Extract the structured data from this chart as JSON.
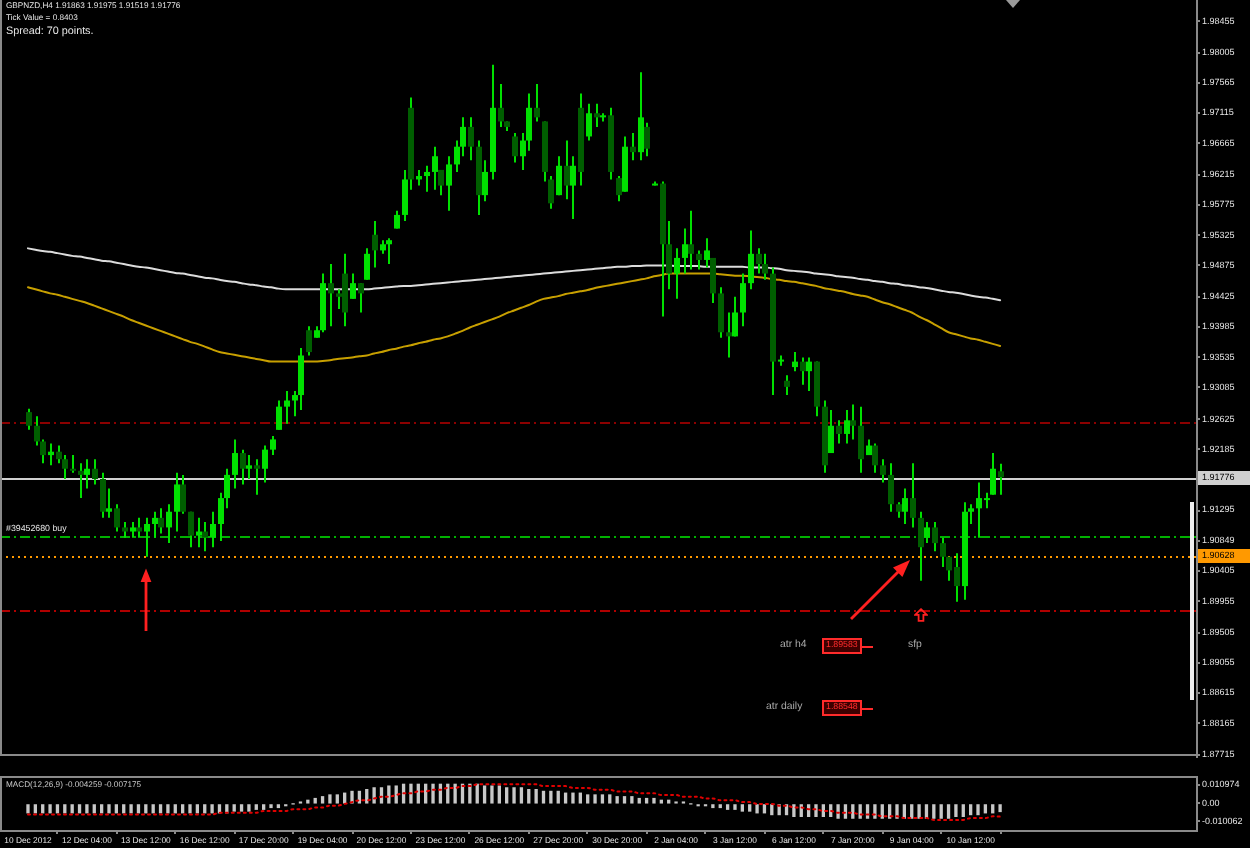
{
  "chart_data": [
    {
      "type": "candlestick",
      "title": "GBPNZD,H4 1.91863 1.91975 1.91519 1.91776",
      "annotations": [
        "Tick Value = 0.8403",
        "Spread: 70 points.",
        "atr h4",
        "1.89583",
        "atr daily",
        "1.88548",
        "sfp"
      ],
      "categories": [
        null,
        null,
        null,
        null,
        null,
        null,
        null,
        null,
        null,
        null,
        null,
        null,
        null,
        null,
        null,
        null,
        null,
        null,
        null,
        null,
        null,
        null,
        null,
        null,
        null,
        null,
        null,
        null,
        null,
        null,
        null,
        null,
        null,
        null,
        null,
        null,
        null,
        null,
        null,
        null,
        null,
        null,
        null,
        null,
        null,
        null,
        null,
        null,
        null,
        null,
        null,
        null,
        null,
        null,
        null,
        null,
        null,
        null,
        null,
        null,
        null,
        null,
        null,
        null,
        null,
        null,
        null,
        null,
        null,
        null,
        null,
        null,
        null,
        null,
        null,
        null,
        null,
        null,
        null,
        null,
        null,
        null,
        null,
        null,
        null,
        null,
        null,
        null,
        null,
        null,
        null,
        null,
        null,
        null,
        null,
        null,
        null,
        null,
        null,
        null,
        null,
        null,
        null,
        null,
        null,
        null,
        null,
        null,
        null,
        null,
        null,
        null,
        null,
        null,
        null,
        null,
        null,
        null,
        null,
        null,
        null,
        null,
        null,
        null,
        null,
        null,
        null,
        null,
        null,
        null,
        null,
        null,
        null
      ],
      "color": "#00e000",
      "colors": [
        "#005e00",
        "#005e00",
        "#005e00",
        "#00e000",
        "#005e00",
        "#005e00",
        "#005e00",
        "#005e00",
        "#00e000",
        "#005e00",
        "#005e00",
        "#00e000",
        "#005e00",
        "#005e00",
        "#00e000",
        "#005e00",
        "#00e000",
        "#00e000",
        "#005e00",
        "#00e000",
        "#00e000",
        "#005e00",
        "#005e00",
        "#00e000",
        "#005e00",
        "#00e000",
        "#00e000",
        "#00e000",
        "#00e000",
        "#005e00",
        "#00e000",
        "#005e00",
        "#00e000",
        "#00e000",
        "#00e000",
        "#00e000",
        "#00e000",
        "#00e000",
        "#005e00",
        "#00e000",
        "#00e000",
        "#005e00",
        "#005e00",
        "#005e00",
        "#00e000",
        "#005e00",
        "#00e000",
        "#005e00",
        "#00e000",
        "#00e000",
        "#00e000",
        "#00e000",
        "#005e00",
        "#00e000",
        "#00e000",
        "#00e000",
        "#005e00",
        "#00e000",
        "#00e000",
        "#00e000",
        "#005e00",
        "#005e00",
        "#00e000",
        "#00e000",
        "#005e00",
        "#005e00",
        "#005e00",
        "#00e000",
        "#00e000",
        "#005e00",
        "#005e00",
        "#005e00",
        "#00e000",
        "#005e00",
        "#00e000",
        "#005e00",
        "#00e000",
        "#005e00",
        "#00e000",
        "#005e00",
        "#005e00",
        "#00e000",
        "#005e00",
        "#00e000",
        "#005e00",
        "#00e000",
        "#005e00",
        "#005e00",
        "#00e000",
        "#00e000",
        "#005e00",
        "#005e00",
        "#00e000",
        "#005e00",
        "#005e00",
        "#005e00",
        "#00e000",
        "#00e000",
        "#00e000",
        "#005e00",
        "#005e00",
        "#005e00",
        "#00e000",
        "#005e00",
        "#00e000",
        "#005e00",
        "#00e000",
        "#005e00",
        "#005e00",
        "#00e000",
        "#005e00",
        "#00e000",
        "#005e00",
        "#005e00",
        "#00e000",
        "#005e00",
        "#005e00",
        "#005e00",
        "#005e00",
        "#00e000",
        "#005e00",
        "#005e00",
        "#00e000",
        "#005e00",
        "#005e00",
        "#005e00",
        "#005e00",
        "#00e000",
        "#00e000",
        "#00e000",
        "#00e000",
        "#00e000",
        "#005e00"
      ],
      "ohlc": [
        [
          1.9273,
          1.9278,
          1.9247,
          1.9253
        ],
        [
          1.9253,
          1.9267,
          1.9224,
          1.923
        ],
        [
          1.923,
          1.9233,
          1.9198,
          1.921
        ],
        [
          1.921,
          1.9227,
          1.9195,
          1.9215
        ],
        [
          1.9215,
          1.9224,
          1.9198,
          1.9204
        ],
        [
          1.9204,
          1.921,
          1.9175,
          1.919
        ],
        [
          1.919,
          1.921,
          1.9184,
          1.9187
        ],
        [
          1.9187,
          1.9198,
          1.9147,
          1.9181
        ],
        [
          1.9181,
          1.9204,
          1.9161,
          1.919
        ],
        [
          1.919,
          1.9204,
          1.9167,
          1.9175
        ],
        [
          1.9175,
          1.9184,
          1.9118,
          1.9127
        ],
        [
          1.9127,
          1.9161,
          1.9118,
          1.9132
        ],
        [
          1.9132,
          1.9138,
          1.9098,
          1.9104
        ],
        [
          1.9104,
          1.9112,
          1.9089,
          1.9098
        ],
        [
          1.9098,
          1.9112,
          1.9089,
          1.9104
        ],
        [
          1.9104,
          1.9118,
          1.9089,
          1.9098
        ],
        [
          1.9098,
          1.9118,
          1.9061,
          1.9109
        ],
        [
          1.9109,
          1.9127,
          1.9089,
          1.9118
        ],
        [
          1.9118,
          1.9132,
          1.9095,
          1.9104
        ],
        [
          1.9104,
          1.9138,
          1.9081,
          1.9127
        ],
        [
          1.9127,
          1.9184,
          1.9098,
          1.9167
        ],
        [
          1.9167,
          1.9181,
          1.9124,
          1.9127
        ],
        [
          1.9127,
          1.9127,
          1.9075,
          1.9092
        ],
        [
          1.9092,
          1.9118,
          1.9075,
          1.9098
        ],
        [
          1.9098,
          1.9112,
          1.9069,
          1.9089
        ],
        [
          1.9089,
          1.9127,
          1.9075,
          1.9109
        ],
        [
          1.9109,
          1.9155,
          1.9084,
          1.9147
        ],
        [
          1.9147,
          1.919,
          1.9132,
          1.9181
        ],
        [
          1.9181,
          1.9233,
          1.9161,
          1.9213
        ],
        [
          1.9213,
          1.9218,
          1.9167,
          1.919
        ],
        [
          1.919,
          1.921,
          1.9175,
          1.9195
        ],
        [
          1.9195,
          1.9204,
          1.9152,
          1.919
        ],
        [
          1.919,
          1.9224,
          1.917,
          1.9218
        ],
        [
          1.9218,
          1.9238,
          1.921,
          1.9233
        ],
        [
          1.9247,
          1.929,
          1.9247,
          1.9281
        ],
        [
          1.9281,
          1.9304,
          1.9256,
          1.929
        ],
        [
          1.929,
          1.9304,
          1.9267,
          1.9298
        ],
        [
          1.9298,
          1.9367,
          1.9276,
          1.9356
        ],
        [
          1.9393,
          1.9399,
          1.9356,
          1.9361
        ],
        [
          1.9382,
          1.9399,
          1.9382,
          1.9393
        ],
        [
          1.9393,
          1.9476,
          1.939,
          1.9462
        ],
        [
          1.9462,
          1.949,
          1.9399,
          1.9447
        ],
        [
          1.9447,
          1.9453,
          1.9424,
          1.9442
        ],
        [
          1.9476,
          1.9505,
          1.9399,
          1.9419
        ],
        [
          1.9439,
          1.9476,
          1.9439,
          1.9462
        ],
        [
          1.9462,
          1.9462,
          1.9419,
          1.9447
        ],
        [
          1.9467,
          1.9513,
          1.9467,
          1.9505
        ],
        [
          1.9533,
          1.9553,
          1.9485,
          1.951
        ],
        [
          1.951,
          1.9525,
          1.9505,
          1.9519
        ],
        [
          1.9519,
          1.9528,
          1.949,
          1.9525
        ],
        [
          1.9542,
          1.9568,
          1.9542,
          1.9562
        ],
        [
          1.9562,
          1.9628,
          1.9553,
          1.9614
        ],
        [
          1.9719,
          1.9734,
          1.9599,
          1.9614
        ],
        [
          1.9614,
          1.9628,
          1.9605,
          1.9619
        ],
        [
          1.9619,
          1.9634,
          1.9596,
          1.9625
        ],
        [
          1.9625,
          1.9662,
          1.9599,
          1.9648
        ],
        [
          1.9628,
          1.9628,
          1.9591,
          1.9605
        ],
        [
          1.9605,
          1.9648,
          1.9568,
          1.9636
        ],
        [
          1.9636,
          1.9671,
          1.9625,
          1.9662
        ],
        [
          1.9662,
          1.9705,
          1.9648,
          1.9691
        ],
        [
          1.9691,
          1.9705,
          1.9642,
          1.9662
        ],
        [
          1.9662,
          1.9671,
          1.9562,
          1.9591
        ],
        [
          1.9591,
          1.9642,
          1.9582,
          1.9625
        ],
        [
          1.9625,
          1.9782,
          1.9614,
          1.9719
        ],
        [
          1.9719,
          1.9754,
          1.9691,
          1.9699
        ],
        [
          1.9699,
          1.9699,
          1.9685,
          1.9691
        ],
        [
          1.9677,
          1.9682,
          1.9639,
          1.9648
        ],
        [
          1.9648,
          1.9682,
          1.9628,
          1.9671
        ],
        [
          1.9671,
          1.974,
          1.9656,
          1.9719
        ],
        [
          1.9719,
          1.9754,
          1.9699,
          1.9705
        ],
        [
          1.9699,
          1.9699,
          1.9611,
          1.9625
        ],
        [
          1.9614,
          1.9619,
          1.9571,
          1.9579
        ],
        [
          1.9591,
          1.9648,
          1.9591,
          1.9634
        ],
        [
          1.9634,
          1.9671,
          1.9585,
          1.9605
        ],
        [
          1.9605,
          1.9648,
          1.9556,
          1.9634
        ],
        [
          1.9719,
          1.974,
          1.9605,
          1.9625
        ],
        [
          1.9677,
          1.9725,
          1.9671,
          1.9711
        ],
        [
          1.9711,
          1.9725,
          1.9691,
          1.9705
        ],
        [
          1.9705,
          1.9711,
          1.9699,
          1.9708
        ],
        [
          1.9708,
          1.9719,
          1.9614,
          1.9625
        ],
        [
          1.9616,
          1.9619,
          1.9582,
          1.9591
        ],
        [
          1.9596,
          1.9677,
          1.9596,
          1.9662
        ],
        [
          1.9662,
          1.9682,
          1.9642,
          1.9654
        ],
        [
          1.9654,
          1.9771,
          1.9642,
          1.9705
        ],
        [
          1.9691,
          1.9697,
          1.9648,
          1.9659
        ],
        [
          1.9608,
          1.9611,
          1.9605,
          1.9608
        ],
        [
          1.9608,
          1.9611,
          1.9413,
          1.9519
        ],
        [
          1.9519,
          1.9553,
          1.9453,
          1.9476
        ],
        [
          1.9476,
          1.9513,
          1.9439,
          1.9499
        ],
        [
          1.9499,
          1.9542,
          1.9476,
          1.9519
        ],
        [
          1.9519,
          1.9568,
          1.9482,
          1.9505
        ],
        [
          1.9505,
          1.951,
          1.9482,
          1.9496
        ],
        [
          1.9496,
          1.9528,
          1.9485,
          1.951
        ],
        [
          1.9499,
          1.9499,
          1.9433,
          1.9447
        ],
        [
          1.9447,
          1.9456,
          1.9382,
          1.939
        ],
        [
          1.939,
          1.9419,
          1.9353,
          1.9384
        ],
        [
          1.9384,
          1.9442,
          1.9384,
          1.9419
        ],
        [
          1.9419,
          1.9476,
          1.9399,
          1.9462
        ],
        [
          1.9462,
          1.9539,
          1.9453,
          1.9505
        ],
        [
          1.9505,
          1.9513,
          1.9476,
          1.949
        ],
        [
          1.949,
          1.9505,
          1.9467,
          1.9476
        ],
        [
          1.9476,
          1.9485,
          1.9298,
          1.9347
        ],
        [
          1.9347,
          1.9356,
          1.9341,
          1.935
        ],
        [
          1.9319,
          1.9327,
          1.9298,
          1.931
        ],
        [
          1.9339,
          1.9361,
          1.9333,
          1.9347
        ],
        [
          1.9347,
          1.9353,
          1.9313,
          1.9333
        ],
        [
          1.9333,
          1.9353,
          1.9304,
          1.9347
        ],
        [
          1.9347,
          1.9347,
          1.9267,
          1.9281
        ],
        [
          1.9281,
          1.929,
          1.9184,
          1.9195
        ],
        [
          1.9213,
          1.9276,
          1.9213,
          1.9253
        ],
        [
          1.9253,
          1.9261,
          1.9227,
          1.9241
        ],
        [
          1.9241,
          1.9276,
          1.9227,
          1.9261
        ],
        [
          1.9261,
          1.9284,
          1.9233,
          1.9253
        ],
        [
          1.9253,
          1.9281,
          1.9184,
          1.9204
        ],
        [
          1.921,
          1.9233,
          1.921,
          1.9224
        ],
        [
          1.9224,
          1.9227,
          1.9184,
          1.9195
        ],
        [
          1.9195,
          1.9204,
          1.917,
          1.9181
        ],
        [
          1.9181,
          1.9198,
          1.9127,
          1.9138
        ],
        [
          1.9138,
          1.9141,
          1.9118,
          1.9127
        ],
        [
          1.9127,
          1.9161,
          1.9109,
          1.9147
        ],
        [
          1.9147,
          1.9198,
          1.9104,
          1.9118
        ],
        [
          1.9118,
          1.9127,
          1.9026,
          1.9075
        ],
        [
          1.9089,
          1.9112,
          1.9081,
          1.9104
        ],
        [
          1.9104,
          1.9112,
          1.9069,
          1.9081
        ],
        [
          1.9081,
          1.9089,
          1.9046,
          1.9061
        ],
        [
          1.9061,
          1.9061,
          1.9026,
          1.9041
        ],
        [
          1.9046,
          1.9066,
          1.8995,
          1.9018
        ],
        [
          1.9018,
          1.9141,
          1.8998,
          1.9127
        ],
        [
          1.9127,
          1.9138,
          1.9109,
          1.9132
        ],
        [
          1.9132,
          1.917,
          1.9089,
          1.9147
        ],
        [
          1.9147,
          1.9155,
          1.9132,
          1.9147
        ],
        [
          1.9152,
          1.9213,
          1.9152,
          1.919
        ],
        [
          1.91863,
          1.91975,
          1.91519,
          1.91776
        ]
      ],
      "series": [
        {
          "type": "line",
          "color": "#dcdcdc",
          "values": [
            1.9513,
            1.9511,
            1.9509,
            1.9508,
            1.9506,
            1.9504,
            1.9502,
            1.9501,
            1.9499,
            1.9497,
            1.9495,
            1.9494,
            1.9492,
            1.949,
            1.9488,
            1.9486,
            1.9485,
            1.9483,
            1.9481,
            1.9479,
            1.9477,
            1.9476,
            1.9474,
            1.9472,
            1.947,
            1.9469,
            1.9467,
            1.9465,
            1.9464,
            1.9462,
            1.946,
            1.9459,
            1.9457,
            1.9456,
            1.9454,
            1.9453,
            1.9453,
            1.9453,
            1.9453,
            1.9453,
            1.9453,
            1.9453,
            1.9453,
            1.9453,
            1.9453,
            1.9453,
            1.9453,
            1.9454,
            1.9455,
            1.9456,
            1.9457,
            1.9458,
            1.9458,
            1.9459,
            1.946,
            1.9461,
            1.9462,
            1.9463,
            1.9464,
            1.9465,
            1.9466,
            1.9467,
            1.9468,
            1.9469,
            1.947,
            1.9471,
            1.9472,
            1.9473,
            1.9474,
            1.9475,
            1.9476,
            1.9477,
            1.9478,
            1.9479,
            1.948,
            1.9481,
            1.9482,
            1.9483,
            1.9484,
            1.9485,
            1.9486,
            1.9486,
            1.9487,
            1.9487,
            1.9488,
            1.9488,
            1.9488,
            1.9488,
            1.9487,
            1.9487,
            1.9487,
            1.9487,
            1.9486,
            1.9486,
            1.9486,
            1.9486,
            1.9486,
            1.9486,
            1.9485,
            1.9485,
            1.9485,
            1.9484,
            1.9483,
            1.9481,
            1.948,
            1.9479,
            1.9478,
            1.9476,
            1.9475,
            1.9474,
            1.9472,
            1.9471,
            1.947,
            1.9468,
            1.9467,
            1.9465,
            1.9464,
            1.9462,
            1.9461,
            1.9459,
            1.9458,
            1.9456,
            1.9455,
            1.9453,
            1.9451,
            1.9449,
            1.9448,
            1.9446,
            1.9444,
            1.9442,
            1.9441,
            1.9439,
            1.9437
          ]
        },
        {
          "type": "line",
          "color": "#c8a000",
          "values": [
            1.9456,
            1.9453,
            1.945,
            1.9447,
            1.9445,
            1.9442,
            1.9439,
            1.9436,
            1.9433,
            1.9429,
            1.9425,
            1.9421,
            1.9417,
            1.9413,
            1.9408,
            1.9404,
            1.94,
            1.9396,
            1.9392,
            1.9388,
            1.9384,
            1.938,
            1.9376,
            1.9373,
            1.9369,
            1.9365,
            1.9361,
            1.9359,
            1.9357,
            1.9355,
            1.9353,
            1.9351,
            1.9349,
            1.9347,
            1.9347,
            1.9347,
            1.9347,
            1.9347,
            1.9347,
            1.9347,
            1.9348,
            1.9349,
            1.9351,
            1.9352,
            1.9353,
            1.9355,
            1.9356,
            1.9359,
            1.9361,
            1.9364,
            1.9366,
            1.9369,
            1.9371,
            1.9374,
            1.9376,
            1.9379,
            1.9381,
            1.9384,
            1.9388,
            1.9392,
            1.9397,
            1.9401,
            1.9405,
            1.9409,
            1.9413,
            1.9418,
            1.9422,
            1.9426,
            1.943,
            1.9435,
            1.9439,
            1.9441,
            1.9443,
            1.9446,
            1.9448,
            1.945,
            1.9452,
            1.9455,
            1.9457,
            1.9459,
            1.9461,
            1.9463,
            1.9465,
            1.9467,
            1.9469,
            1.9472,
            1.9474,
            1.9476,
            1.9476,
            1.9476,
            1.9476,
            1.9476,
            1.9476,
            1.9476,
            1.9475,
            1.9474,
            1.9473,
            1.9473,
            1.9472,
            1.9471,
            1.947,
            1.9468,
            1.9467,
            1.9465,
            1.9464,
            1.9462,
            1.946,
            1.9458,
            1.9455,
            1.9453,
            1.9451,
            1.9449,
            1.9446,
            1.9444,
            1.9442,
            1.9438,
            1.9434,
            1.9431,
            1.9427,
            1.9423,
            1.9419,
            1.9413,
            1.9408,
            1.9402,
            1.9396,
            1.939,
            1.9387,
            1.9384,
            1.9381,
            1.9379,
            1.9376,
            1.9373,
            1.937
          ]
        }
      ],
      "marker": "none",
      "ylim": [
        1.8769,
        1.9877
      ],
      "yticks": [
        1.98455,
        1.98005,
        1.97565,
        1.97115,
        1.96665,
        1.96215,
        1.95775,
        1.95325,
        1.94875,
        1.94425,
        1.93985,
        1.93535,
        1.93085,
        1.92625,
        1.92185,
        1.91295,
        1.90849,
        1.90405,
        1.89955,
        1.89505,
        1.89055,
        1.88615,
        1.88165,
        1.87715
      ],
      "tick_labels": "y",
      "ref_lines": [
        {
          "axis": "y",
          "value": 1.92584,
          "color": "#8b0000",
          "line_style": "dashed"
        },
        {
          "axis": "y",
          "value": 1.91776,
          "label": "1.91776",
          "color": "#d0d0d0",
          "line_style": "solid"
        },
        {
          "axis": "y",
          "value": 1.90923,
          "label": "#39452680 buy",
          "color": "#00b000",
          "line_style": "dashed"
        },
        {
          "axis": "y",
          "value": 1.90628,
          "label": "1.90628",
          "color": "#ff9900",
          "line_style": "dotted"
        },
        {
          "axis": "y",
          "value": 1.8983,
          "color": "#b00000",
          "line_style": "dashed"
        }
      ],
      "grid": false,
      "legend": false
    },
    {
      "type": "bar",
      "title": "MACD(12,26,9) -0.004259 -0.007175",
      "categories": [
        "10 Dec 2012",
        null,
        null,
        null,
        null,
        null,
        null,
        null,
        "12 Dec 04:00",
        null,
        null,
        null,
        null,
        null,
        null,
        null,
        "13 Dec 12:00",
        null,
        null,
        null,
        null,
        null,
        null,
        null,
        "16 Dec 12:00",
        null,
        null,
        null,
        null,
        null,
        null,
        null,
        "17 Dec 20:00",
        null,
        null,
        null,
        null,
        null,
        null,
        null,
        "19 Dec 04:00",
        null,
        null,
        null,
        null,
        null,
        null,
        null,
        "20 Dec 12:00",
        null,
        null,
        null,
        null,
        null,
        null,
        null,
        "23 Dec 12:00",
        null,
        null,
        null,
        null,
        null,
        null,
        null,
        "26 Dec 12:00",
        null,
        null,
        null,
        null,
        null,
        null,
        null,
        "27 Dec 20:00",
        null,
        null,
        null,
        null,
        null,
        null,
        null,
        "30 Dec 20:00",
        null,
        null,
        null,
        null,
        null,
        null,
        null,
        "2 Jan 04:00",
        null,
        null,
        null,
        null,
        null,
        null,
        null,
        "3 Jan 12:00",
        null,
        null,
        null,
        null,
        null,
        null,
        null,
        "6 Jan 12:00",
        null,
        null,
        null,
        null,
        null,
        null,
        null,
        "7 Jan 20:00",
        null,
        null,
        null,
        null,
        null,
        null,
        null,
        "9 Jan 04:00",
        null,
        null,
        null,
        null,
        null,
        null,
        null,
        "10 Jan 12:00",
        null,
        null,
        null,
        null
      ],
      "series": [
        {
          "color": "#c8c8c8",
          "values": [
            -0.005,
            -0.005,
            -0.005,
            -0.005,
            -0.005,
            -0.005,
            -0.005,
            -0.005,
            -0.005,
            -0.005,
            -0.005,
            -0.005,
            -0.005,
            -0.005,
            -0.005,
            -0.005,
            -0.005,
            -0.005,
            -0.005,
            -0.005,
            -0.005,
            -0.005,
            -0.005,
            -0.005,
            -0.005,
            -0.005,
            -0.005,
            -0.005,
            -0.004,
            -0.004,
            -0.004,
            -0.003,
            -0.003,
            -0.002,
            -0.002,
            -0.001,
            0,
            0.001,
            0.002,
            0.003,
            0.004,
            0.005,
            0.005,
            0.006,
            0.007,
            0.007,
            0.008,
            0.009,
            0.009,
            0.01,
            0.01,
            0.011,
            0.011,
            0.011,
            0.011,
            0.011,
            0.011,
            0.011,
            0.011,
            0.011,
            0.011,
            0.011,
            0.01,
            0.01,
            0.01,
            0.009,
            0.009,
            0.009,
            0.008,
            0.008,
            0.007,
            0.007,
            0.007,
            0.006,
            0.006,
            0.006,
            0.005,
            0.005,
            0.005,
            0.005,
            0.004,
            0.004,
            0.004,
            0.003,
            0.003,
            0.003,
            0.002,
            0.002,
            0.001,
            0.001,
            0,
            -0.001,
            -0.001,
            -0.002,
            -0.002,
            -0.003,
            -0.003,
            -0.004,
            -0.004,
            -0.005,
            -0.005,
            -0.006,
            -0.006,
            -0.006,
            -0.007,
            -0.007,
            -0.007,
            -0.007,
            -0.007,
            -0.007,
            -0.008,
            -0.008,
            -0.008,
            -0.008,
            -0.008,
            -0.008,
            -0.008,
            -0.008,
            -0.008,
            -0.008,
            -0.008,
            -0.008,
            -0.008,
            -0.008,
            -0.008,
            -0.008,
            -0.007,
            -0.007,
            -0.006,
            -0.006,
            -0.005,
            -0.005,
            -0.004259
          ]
        },
        {
          "type": "line",
          "color": "#e00000",
          "line_style": "dotted",
          "values": [
            -0.006,
            -0.006,
            -0.006,
            -0.006,
            -0.006,
            -0.006,
            -0.006,
            -0.006,
            -0.006,
            -0.006,
            -0.006,
            -0.006,
            -0.006,
            -0.006,
            -0.006,
            -0.006,
            -0.006,
            -0.006,
            -0.006,
            -0.006,
            -0.006,
            -0.006,
            -0.006,
            -0.006,
            -0.006,
            -0.006,
            -0.005,
            -0.005,
            -0.005,
            -0.005,
            -0.005,
            -0.005,
            -0.004,
            -0.004,
            -0.004,
            -0.004,
            -0.003,
            -0.003,
            -0.003,
            -0.002,
            -0.002,
            -0.001,
            -0.001,
            0,
            0.001,
            0.002,
            0.002,
            0.003,
            0.004,
            0.004,
            0.005,
            0.006,
            0.006,
            0.007,
            0.007,
            0.008,
            0.008,
            0.009,
            0.009,
            0.01,
            0.01,
            0.011,
            0.011,
            0.011,
            0.011,
            0.011,
            0.011,
            0.011,
            0.011,
            0.011,
            0.01,
            0.01,
            0.01,
            0.01,
            0.009,
            0.009,
            0.009,
            0.008,
            0.008,
            0.008,
            0.007,
            0.007,
            0.007,
            0.006,
            0.006,
            0.006,
            0.005,
            0.005,
            0.005,
            0.004,
            0.004,
            0.004,
            0.003,
            0.003,
            0.002,
            0.002,
            0.002,
            0.001,
            0.001,
            0,
            0,
            0,
            -0.001,
            -0.001,
            -0.002,
            -0.002,
            -0.003,
            -0.003,
            -0.004,
            -0.004,
            -0.005,
            -0.005,
            -0.005,
            -0.006,
            -0.006,
            -0.006,
            -0.007,
            -0.007,
            -0.007,
            -0.008,
            -0.008,
            -0.008,
            -0.008,
            -0.009,
            -0.009,
            -0.009,
            -0.009,
            -0.009,
            -0.008,
            -0.008,
            -0.008,
            -0.007,
            -0.007175
          ]
        }
      ],
      "marker": "none",
      "ylim": [
        -0.0147,
        0.0157
      ],
      "yticks": [
        0.010974,
        {
          "value": 0,
          "label": "0.00"
        },
        -0.010062
      ],
      "grid": false,
      "legend": false
    }
  ]
}
